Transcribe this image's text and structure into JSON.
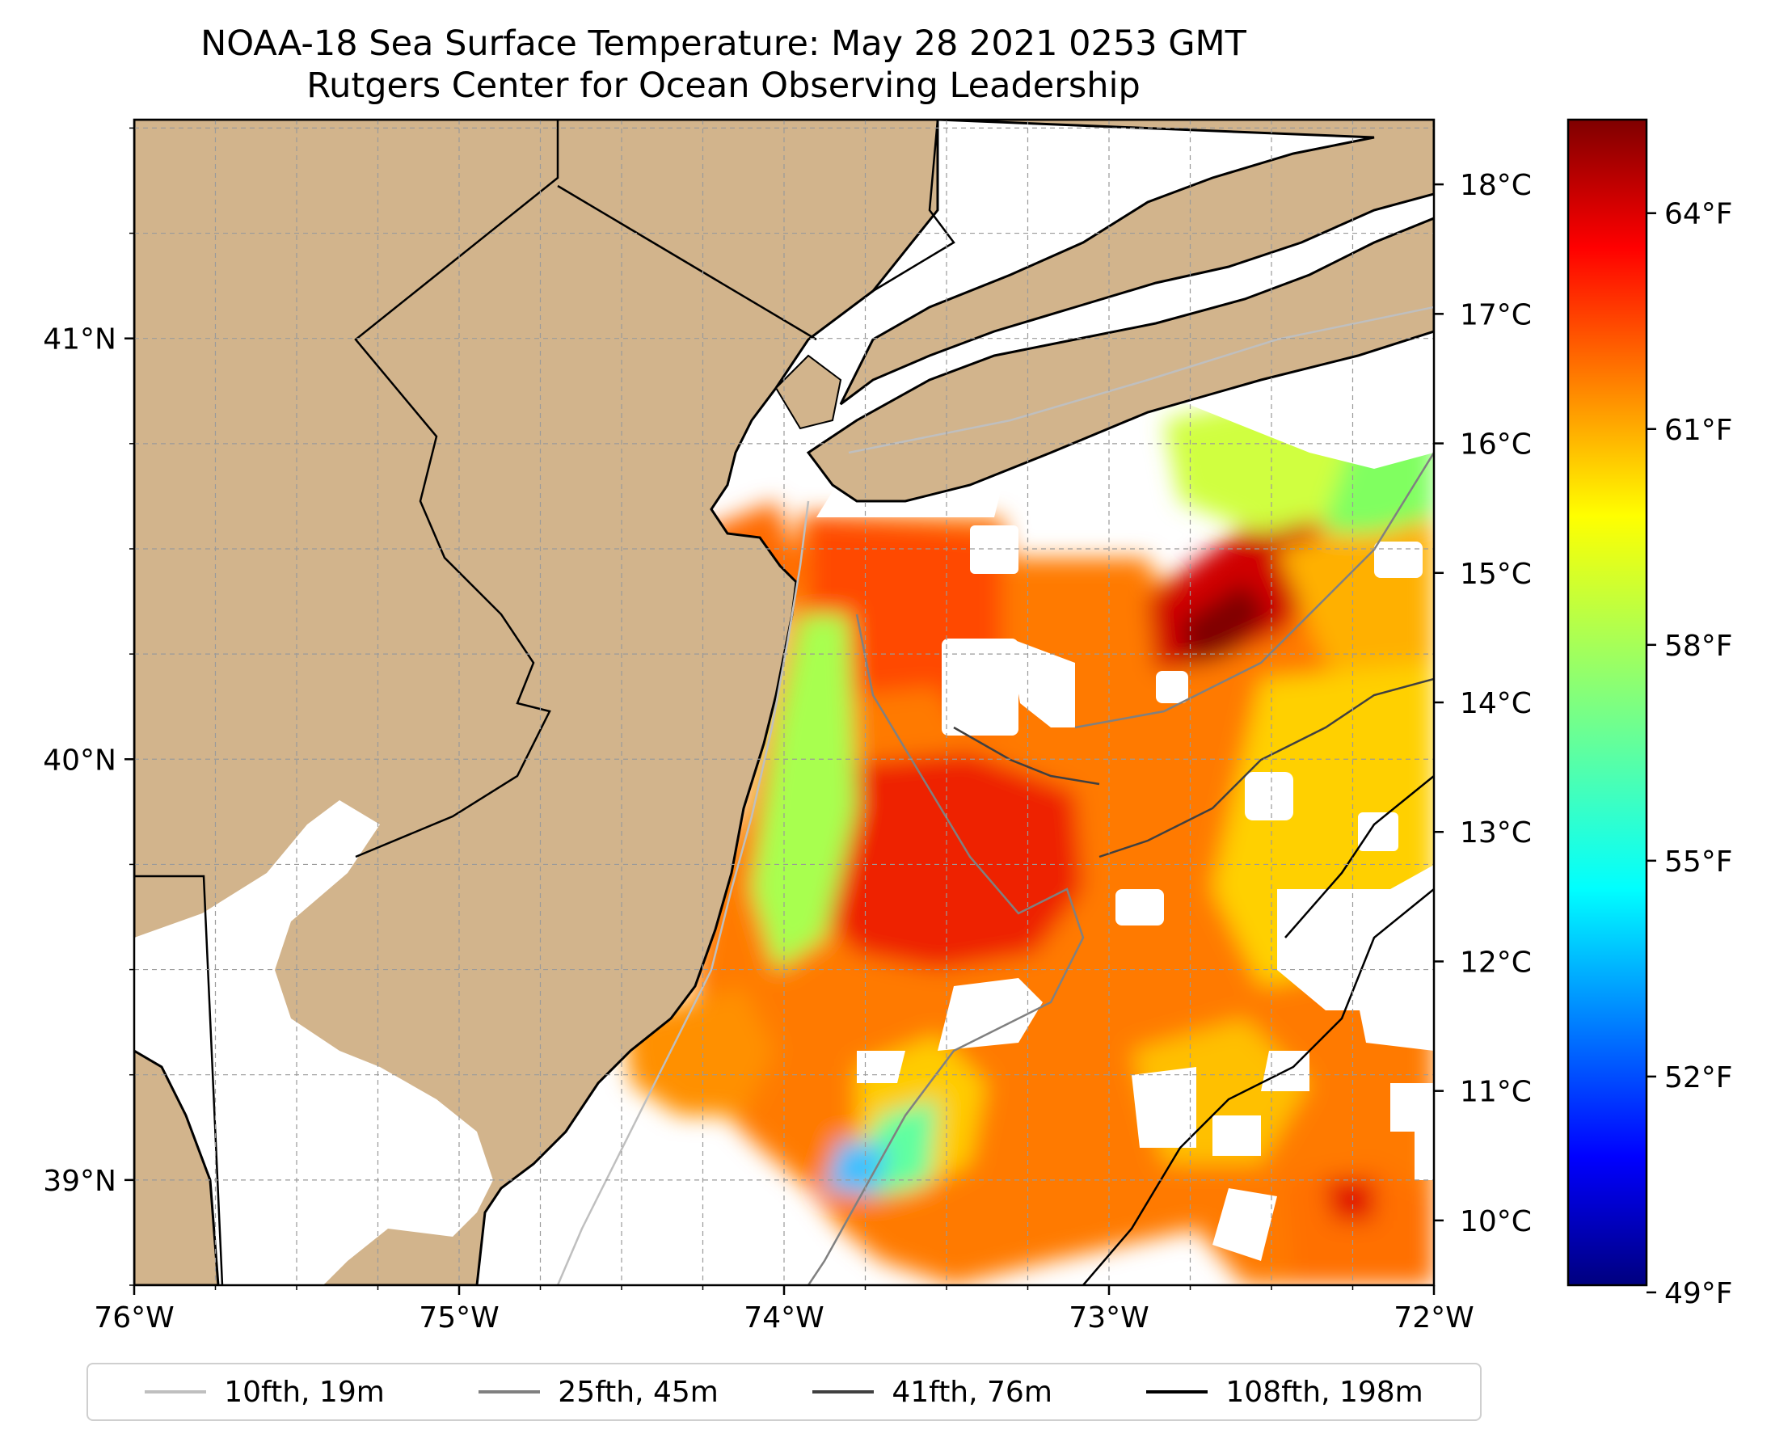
{
  "title": {
    "line1": "NOAA-18 Sea Surface Temperature: May 28 2021 0253 GMT",
    "line2": "Rutgers Center for Ocean Observing Leadership"
  },
  "map": {
    "lon_range": [
      -76,
      -72
    ],
    "lat_range": [
      38.75,
      41.52
    ],
    "lon_ticks": [
      "76°W",
      "75°W",
      "74°W",
      "73°W",
      "72°W"
    ],
    "lat_ticks": [
      "41°N",
      "40°N",
      "39°N"
    ],
    "land_color": "#d2b48c",
    "gridlines": true
  },
  "colorbar": {
    "colormap": "jet",
    "celsius_ticks": [
      "18°C",
      "17°C",
      "16°C",
      "15°C",
      "14°C",
      "13°C",
      "12°C",
      "11°C",
      "10°C"
    ],
    "fahrenheit_ticks": [
      "64°F",
      "61°F",
      "58°F",
      "55°F",
      "52°F",
      "49°F"
    ],
    "range_celsius": [
      9.5,
      18.5
    ]
  },
  "legend": [
    {
      "label": "10fth, 19m",
      "color": "#bfbfbf"
    },
    {
      "label": "25fth, 45m",
      "color": "#808080"
    },
    {
      "label": "41fth, 76m",
      "color": "#404040"
    },
    {
      "label": "108fth, 198m",
      "color": "#000000"
    }
  ]
}
